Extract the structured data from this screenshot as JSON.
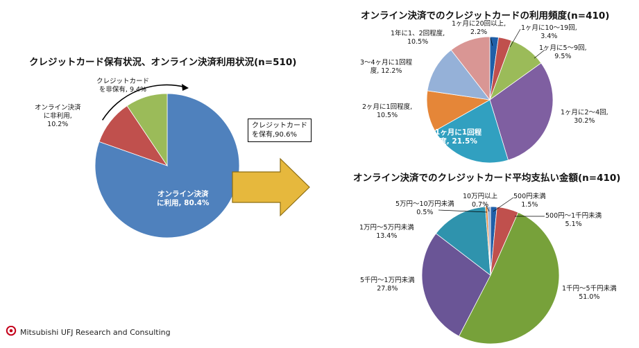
{
  "chart_data": [
    {
      "type": "pie",
      "title": "クレジットカード保有状況、オンライン決済利用状況(n=510)",
      "slices": [
        {
          "label": "オンライン決済に利用",
          "value": 80.4,
          "text": "オンライン決済\nに利用, 80.4%",
          "color": "#4f81bd"
        },
        {
          "label": "オンライン決済に非利用",
          "value": 10.2,
          "text": "オンライン決済\nに非利用,\n10.2%",
          "color": "#c0504d"
        },
        {
          "label": "クレジットカードを非保有",
          "value": 9.4,
          "text": "クレジットカード\nを非保有, 9.4%",
          "color": "#9bbb59"
        }
      ],
      "callout": {
        "text": "クレジットカード\nを保有,90.6%",
        "value": 90.6
      }
    },
    {
      "type": "pie",
      "title": "オンライン決済でのクレジットカードの利用頻度(n=410)",
      "slices": [
        {
          "label": "1ヶ月に20回以上",
          "value": 2.2,
          "text": "1ヶ月に20回以上,\n2.2%",
          "color": "#1f5fa8"
        },
        {
          "label": "1ヶ月に10～19回",
          "value": 3.4,
          "text": "1ヶ月に10～19回,\n3.4%",
          "color": "#c0504d"
        },
        {
          "label": "1ヶ月に5～9回",
          "value": 9.5,
          "text": "1ヶ月に5～9回,\n9.5%",
          "color": "#9bbb59"
        },
        {
          "label": "1ヶ月に2～4回",
          "value": 30.2,
          "text": "1ヶ月に2～4回,\n30.2%",
          "color": "#7f5fa1"
        },
        {
          "label": "1ヶ月に1回程度",
          "value": 21.5,
          "text": "1ヶ月に1回程\n度, 21.5%",
          "color": "#31a0c0"
        },
        {
          "label": "2ヶ月に1回程度",
          "value": 10.5,
          "text": "2ヶ月に1回程度,\n10.5%",
          "color": "#e58638"
        },
        {
          "label": "3～4ヶ月に1回程度",
          "value": 12.2,
          "text": "3～4ヶ月に1回程\n度, 12.2%",
          "color": "#95b1d8"
        },
        {
          "label": "1年に1、2回程度",
          "value": 10.5,
          "text": "1年に1、2回程度,\n10.5%",
          "color": "#d99694"
        }
      ]
    },
    {
      "type": "pie",
      "title": "オンライン決済でのクレジットカード平均支払い金額(n=410)",
      "slices": [
        {
          "label": "500円未満",
          "value": 1.5,
          "text": "500円未満\n1.5%",
          "color": "#1f5fa8"
        },
        {
          "label": "500円～1千円未満",
          "value": 5.1,
          "text": "500円～1千円未満\n5.1%",
          "color": "#c0504d"
        },
        {
          "label": "1千円～5千円未満",
          "value": 51.0,
          "text": "1千円～5千円未満\n51.0%",
          "color": "#77a13a"
        },
        {
          "label": "5千円～1万円未満",
          "value": 27.8,
          "text": "5千円～1万円未満\n27.8%",
          "color": "#6a5596"
        },
        {
          "label": "1万円～5万円未満",
          "value": 13.4,
          "text": "1万円～5万円未満\n13.4%",
          "color": "#2f93ad"
        },
        {
          "label": "5万円～10万円未満",
          "value": 0.5,
          "text": "5万円～10万円未満\n0.5%",
          "color": "#e58638"
        },
        {
          "label": "10万円以上",
          "value": 0.7,
          "text": "10万円以上\n0.7%",
          "color": "#95b1d8"
        }
      ]
    }
  ],
  "footer": {
    "company": "Mitsubishi UFJ Research and Consulting",
    "logo_text": "MUFG"
  },
  "colors": {
    "arrow_fill": "#e6b83d",
    "arrow_stroke": "#8c6d12",
    "logo_red": "#c4001a"
  }
}
